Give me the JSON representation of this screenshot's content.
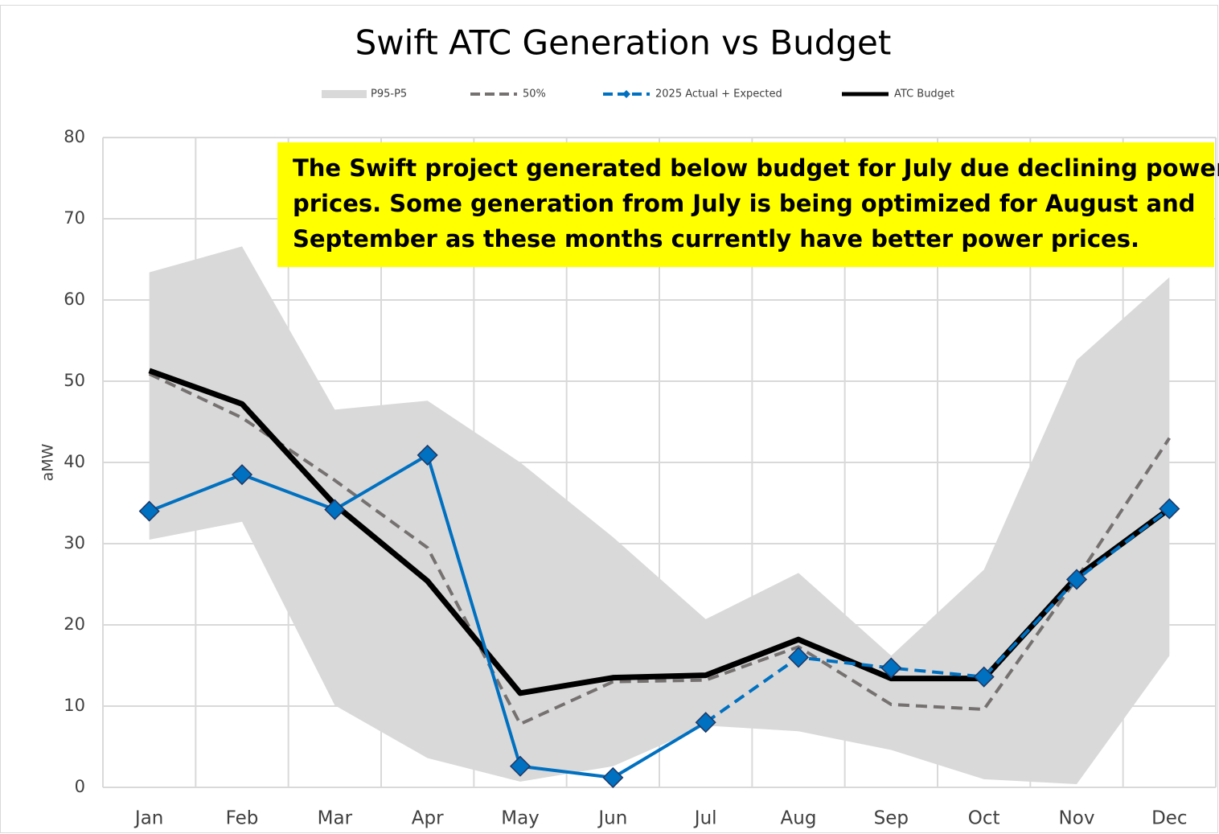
{
  "chart_data": {
    "type": "line",
    "title": "Swift ATC Generation vs Budget",
    "y_label": "aMW",
    "categories": [
      "Jan",
      "Feb",
      "Mar",
      "Apr",
      "May",
      "Jun",
      "Jul",
      "Aug",
      "Sep",
      "Oct",
      "Nov",
      "Dec"
    ],
    "band": {
      "name": "P95-P5",
      "color": "#d9d9d9",
      "upper": [
        63.4,
        66.6,
        46.5,
        47.6,
        40,
        30.8,
        20.7,
        26.4,
        16.2,
        26.8,
        52.6,
        62.8
      ],
      "lower": [
        30.5,
        32.7,
        10.1,
        3.6,
        0.7,
        2.6,
        7.6,
        6.9,
        4.6,
        1.0,
        0.4,
        16.2
      ]
    },
    "series": [
      {
        "name": "50%",
        "color": "#767171",
        "dashed": true,
        "values": [
          50.9,
          45.5,
          37.8,
          29.5,
          7.8,
          13,
          13.2,
          17.3,
          10.2,
          9.6,
          25.7,
          43
        ]
      },
      {
        "name": "2025 Actual + Expected",
        "color": "#0070c0",
        "markers": true,
        "dashed_from_index": 6,
        "values": [
          34,
          38.5,
          34.2,
          40.9,
          2.6,
          1.2,
          8,
          16,
          14.7,
          13.6,
          25.6,
          34.3
        ]
      },
      {
        "name": "ATC Budget",
        "color": "#000000",
        "values": [
          51.3,
          47.2,
          34.8,
          25.4,
          11.6,
          13.5,
          13.8,
          18.2,
          13.4,
          13.4,
          25.9,
          34.3
        ]
      }
    ],
    "annotation_lines": [
      "The Swift project generated below budget for July due declining power",
      "prices. Some generation from July is being optimized for August and",
      "September as these months currently have better power prices."
    ],
    "ylim": [
      0,
      80
    ],
    "yticks": [
      0,
      10,
      20,
      30,
      40,
      50,
      60,
      70,
      80
    ],
    "grid": true,
    "legend": "top"
  }
}
